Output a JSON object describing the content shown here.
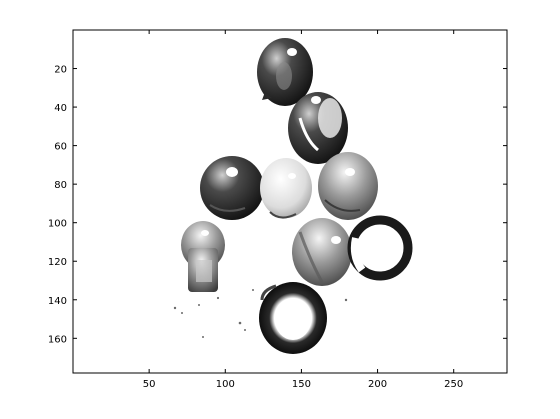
{
  "chart_data": {
    "type": "heatmap",
    "colormap": "gray",
    "xlim": [
      0,
      285
    ],
    "ylim": [
      178,
      0
    ],
    "y_direction": "down",
    "xticks": [
      50,
      100,
      150,
      200,
      250
    ],
    "yticks": [
      20,
      40,
      60,
      80,
      100,
      120,
      140,
      160
    ],
    "xtick_labels": [
      "50",
      "100",
      "150",
      "200",
      "250"
    ],
    "ytick_labels": [
      "20",
      "40",
      "60",
      "80",
      "100",
      "120",
      "140",
      "160"
    ],
    "grid": false,
    "colors": {
      "background": "#ffffff",
      "axes": "#000000",
      "dark": "#1a1a1a",
      "mid": "#7a7a7a",
      "light": "#d8d8d8"
    }
  }
}
